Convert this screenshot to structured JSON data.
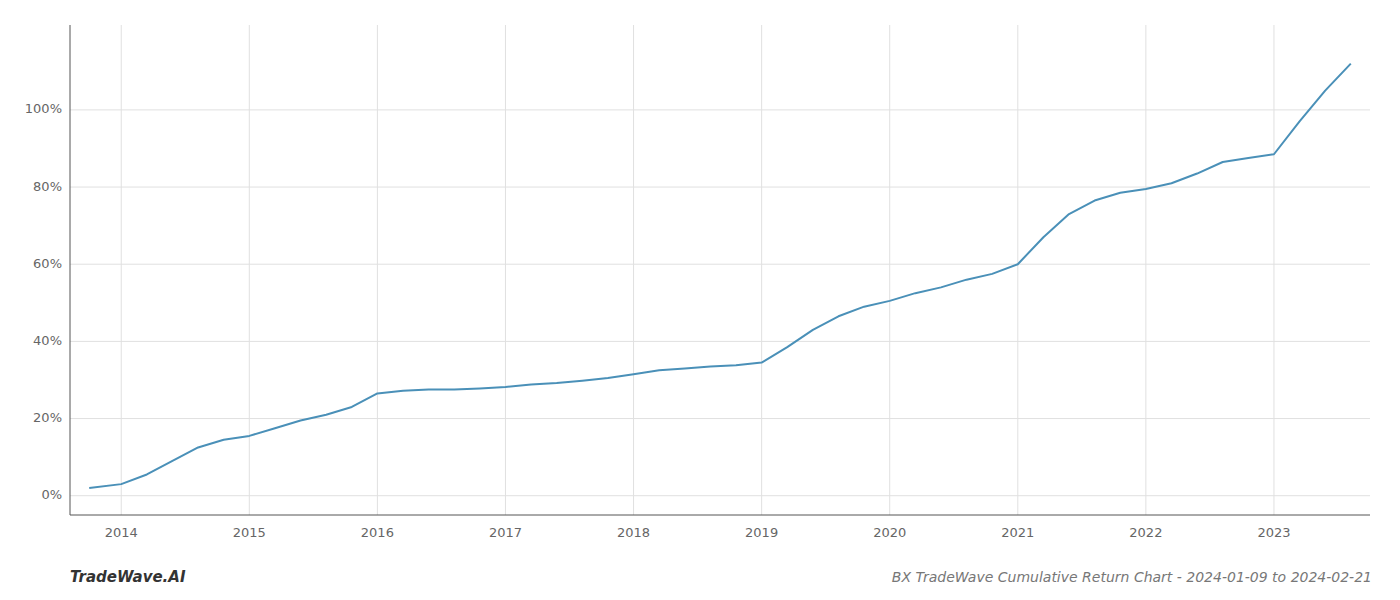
{
  "chart_data": {
    "type": "line",
    "title": "BX TradeWave Cumulative Return Chart - 2024-01-09 to 2024-02-21",
    "annotations": [
      "TradeWave.AI"
    ],
    "color": "#4a90b8",
    "grid": true,
    "x": [
      2013.75,
      2014.0,
      2014.2,
      2014.4,
      2014.6,
      2014.8,
      2015.0,
      2015.2,
      2015.4,
      2015.6,
      2015.8,
      2016.0,
      2016.2,
      2016.4,
      2016.6,
      2016.8,
      2017.0,
      2017.2,
      2017.4,
      2017.6,
      2017.8,
      2018.0,
      2018.2,
      2018.4,
      2018.6,
      2018.8,
      2019.0,
      2019.2,
      2019.4,
      2019.6,
      2019.8,
      2020.0,
      2020.2,
      2020.4,
      2020.6,
      2020.8,
      2021.0,
      2021.2,
      2021.4,
      2021.6,
      2021.8,
      2022.0,
      2022.2,
      2022.4,
      2022.6,
      2022.8,
      2023.0,
      2023.2,
      2023.4,
      2023.6
    ],
    "values": [
      2.0,
      3.0,
      5.5,
      9.0,
      12.5,
      14.5,
      15.5,
      17.5,
      19.5,
      21.0,
      23.0,
      26.5,
      27.2,
      27.5,
      27.5,
      27.8,
      28.2,
      28.8,
      29.2,
      29.8,
      30.5,
      31.5,
      32.5,
      33.0,
      33.5,
      33.8,
      34.5,
      38.5,
      43.0,
      46.5,
      49.0,
      50.5,
      52.5,
      54.0,
      56.0,
      57.5,
      60.0,
      67.0,
      73.0,
      76.5,
      78.5,
      79.5,
      81.0,
      83.5,
      86.5,
      87.5,
      88.5,
      97.0,
      105.0,
      112.0
    ],
    "xlim": [
      2013.6,
      2023.75
    ],
    "xticks": [
      2014,
      2015,
      2016,
      2017,
      2018,
      2019,
      2020,
      2021,
      2022,
      2023
    ],
    "ylim": [
      -5,
      122
    ],
    "yticks": [
      {
        "value": 0,
        "label": "0%"
      },
      {
        "value": 20,
        "label": "20%"
      },
      {
        "value": 40,
        "label": "40%"
      },
      {
        "value": 60,
        "label": "60%"
      },
      {
        "value": 80,
        "label": "80%"
      },
      {
        "value": 100,
        "label": "100%"
      }
    ]
  }
}
